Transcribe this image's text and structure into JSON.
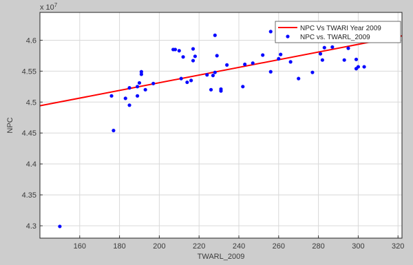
{
  "chart_data": {
    "type": "scatter",
    "xlabel": "TWARL_2009",
    "ylabel": "NPC",
    "y_exponent_label": "x 10",
    "y_exponent_power": "7",
    "xlim": [
      140,
      322
    ],
    "ylim": [
      4.28,
      4.645
    ],
    "x_ticks": [
      160,
      180,
      200,
      220,
      240,
      260,
      280,
      300,
      320
    ],
    "y_ticks": [
      4.3,
      4.35,
      4.4,
      4.45,
      4.5,
      4.55,
      4.6
    ],
    "x_tick_labels": [
      "160",
      "180",
      "200",
      "220",
      "240",
      "260",
      "280",
      "300",
      "320"
    ],
    "y_tick_labels": [
      "4.3",
      "4.35",
      "4.4",
      "4.45",
      "4.5",
      "4.55",
      "4.6"
    ],
    "grid": true,
    "legend_position": "top-right",
    "series": [
      {
        "name": "NPC vs. TWARL_2009",
        "type": "scatter",
        "color": "#0a0aff",
        "points": [
          [
            150,
            4.299
          ],
          [
            176,
            4.51
          ],
          [
            177,
            4.454
          ],
          [
            183,
            4.506
          ],
          [
            185,
            4.495
          ],
          [
            185,
            4.523
          ],
          [
            189,
            4.51
          ],
          [
            189,
            4.525
          ],
          [
            190,
            4.531
          ],
          [
            191,
            4.545
          ],
          [
            191,
            4.549
          ],
          [
            193,
            4.52
          ],
          [
            197,
            4.53
          ],
          [
            207,
            4.585
          ],
          [
            208,
            4.585
          ],
          [
            210,
            4.583
          ],
          [
            211,
            4.538
          ],
          [
            212,
            4.573
          ],
          [
            214,
            4.532
          ],
          [
            216,
            4.535
          ],
          [
            217,
            4.586
          ],
          [
            217,
            4.567
          ],
          [
            218,
            4.574
          ],
          [
            224,
            4.544
          ],
          [
            226,
            4.52
          ],
          [
            227,
            4.543
          ],
          [
            228,
            4.548
          ],
          [
            228,
            4.608
          ],
          [
            229,
            4.575
          ],
          [
            231,
            4.518
          ],
          [
            231,
            4.521
          ],
          [
            234,
            4.56
          ],
          [
            242,
            4.525
          ],
          [
            243,
            4.561
          ],
          [
            247,
            4.563
          ],
          [
            252,
            4.576
          ],
          [
            256,
            4.614
          ],
          [
            256,
            4.549
          ],
          [
            260,
            4.57
          ],
          [
            261,
            4.577
          ],
          [
            266,
            4.565
          ],
          [
            270,
            4.538
          ],
          [
            277,
            4.548
          ],
          [
            281,
            4.578
          ],
          [
            282,
            4.568
          ],
          [
            283,
            4.588
          ],
          [
            287,
            4.589
          ],
          [
            293,
            4.568
          ],
          [
            295,
            4.587
          ],
          [
            299,
            4.569
          ],
          [
            299,
            4.554
          ],
          [
            300,
            4.557
          ],
          [
            303,
            4.557
          ]
        ]
      },
      {
        "name": "NPC Vs TWARI Year 2009",
        "type": "line",
        "color": "#ff0000",
        "points": [
          [
            140,
            4.494
          ],
          [
            322,
            4.607
          ]
        ]
      }
    ]
  }
}
